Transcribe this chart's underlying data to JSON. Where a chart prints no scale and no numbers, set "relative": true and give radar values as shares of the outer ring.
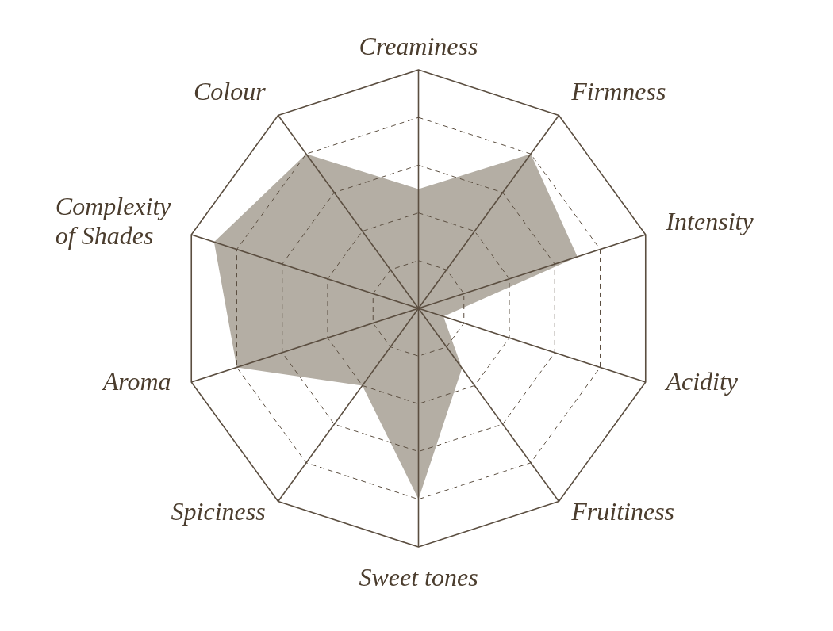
{
  "chart_data": {
    "type": "radar",
    "relative": true,
    "grid": true,
    "categories": [
      "Creaminess",
      "Firmness",
      "Intensity",
      "Acidity",
      "Fruitiness",
      "Sweet tones",
      "Spiciness",
      "Aroma",
      "Complexity of Shades",
      "Colour"
    ],
    "series": [
      {
        "color": "#b4aea4",
        "values": [
          0.5,
          0.8,
          0.7,
          0.11,
          0.31,
          0.8,
          0.4,
          0.8,
          0.9,
          0.8
        ]
      }
    ]
  }
}
